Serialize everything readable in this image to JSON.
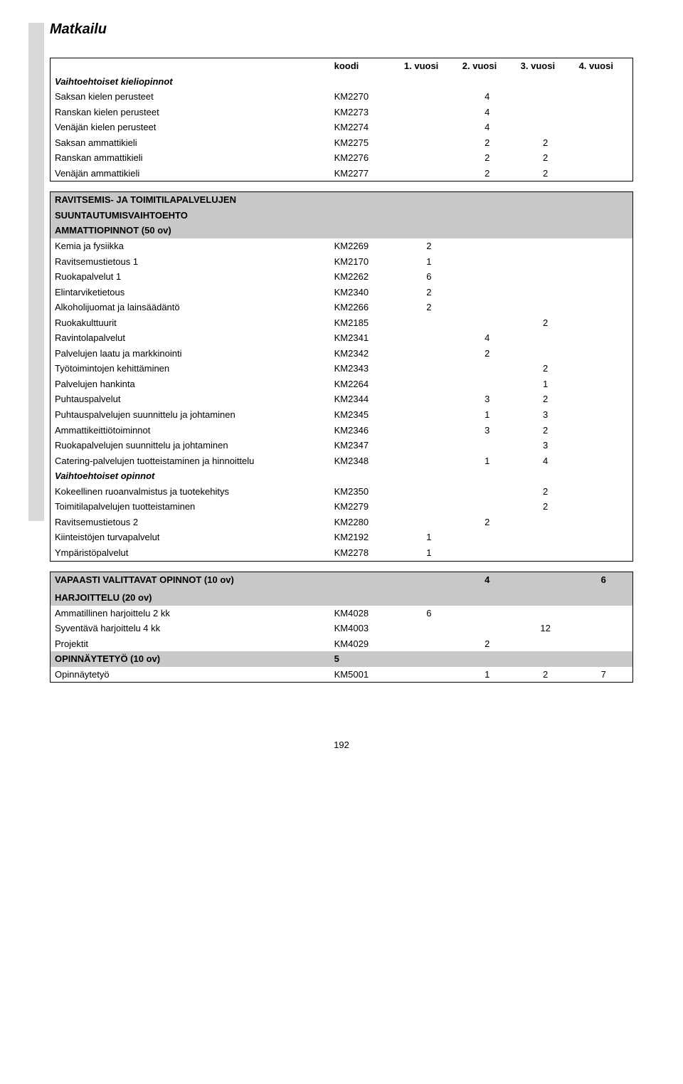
{
  "page_title": "Matkailu",
  "page_number": "192",
  "columns": {
    "koodi": "koodi",
    "v1": "1. vuosi",
    "v2": "2. vuosi",
    "v3": "3. vuosi",
    "v4": "4. vuosi"
  },
  "table1": {
    "header_italic": "Vaihtoehtoiset kieliopinnot",
    "rows": [
      {
        "name": "Saksan kielen perusteet",
        "code": "KM2270",
        "v1": "",
        "v2": "4",
        "v3": "",
        "v4": ""
      },
      {
        "name": "Ranskan kielen perusteet",
        "code": "KM2273",
        "v1": "",
        "v2": "4",
        "v3": "",
        "v4": ""
      },
      {
        "name": "Venäjän kielen perusteet",
        "code": "KM2274",
        "v1": "",
        "v2": "4",
        "v3": "",
        "v4": ""
      },
      {
        "name": "Saksan ammattikieli",
        "code": "KM2275",
        "v1": "",
        "v2": "2",
        "v3": "2",
        "v4": ""
      },
      {
        "name": "Ranskan ammattikieli",
        "code": "KM2276",
        "v1": "",
        "v2": "2",
        "v3": "2",
        "v4": ""
      },
      {
        "name": "Venäjän ammattikieli",
        "code": "KM2277",
        "v1": "",
        "v2": "2",
        "v3": "2",
        "v4": ""
      }
    ]
  },
  "table2": {
    "section_lines": [
      "RAVITSEMIS- JA TOIMITILAPALVELUJEN",
      "SUUNTAUTUMISVAIHTOEHTO",
      "AMMATTIOPINNOT (50 ov)"
    ],
    "rows": [
      {
        "name": "Kemia ja fysiikka",
        "code": "KM2269",
        "v1": "2",
        "v2": "",
        "v3": "",
        "v4": ""
      },
      {
        "name": "Ravitsemustietous 1",
        "code": "KM2170",
        "v1": "1",
        "v2": "",
        "v3": "",
        "v4": ""
      },
      {
        "name": "Ruokapalvelut 1",
        "code": "KM2262",
        "v1": "6",
        "v2": "",
        "v3": "",
        "v4": ""
      },
      {
        "name": "Elintarviketietous",
        "code": "KM2340",
        "v1": "2",
        "v2": "",
        "v3": "",
        "v4": ""
      },
      {
        "name": "Alkoholijuomat ja lainsäädäntö",
        "code": "KM2266",
        "v1": "2",
        "v2": "",
        "v3": "",
        "v4": ""
      },
      {
        "name": "Ruokakulttuurit",
        "code": "KM2185",
        "v1": "",
        "v2": "",
        "v3": "2",
        "v4": ""
      },
      {
        "name": "Ravintolapalvelut",
        "code": "KM2341",
        "v1": "",
        "v2": "4",
        "v3": "",
        "v4": ""
      },
      {
        "name": "Palvelujen laatu ja markkinointi",
        "code": "KM2342",
        "v1": "",
        "v2": "2",
        "v3": "",
        "v4": ""
      },
      {
        "name": "Työtoimintojen kehittäminen",
        "code": "KM2343",
        "v1": "",
        "v2": "",
        "v3": "2",
        "v4": ""
      },
      {
        "name": "Palvelujen hankinta",
        "code": "KM2264",
        "v1": "",
        "v2": "",
        "v3": "1",
        "v4": ""
      },
      {
        "name": "Puhtauspalvelut",
        "code": "KM2344",
        "v1": "",
        "v2": "3",
        "v3": "2",
        "v4": ""
      },
      {
        "name": "Puhtauspalvelujen suunnittelu ja johtaminen",
        "code": "KM2345",
        "v1": "",
        "v2": "1",
        "v3": "3",
        "v4": ""
      },
      {
        "name": "Ammattikeittiötoiminnot",
        "code": "KM2346",
        "v1": "",
        "v2": "3",
        "v3": "2",
        "v4": ""
      },
      {
        "name": "Ruokapalvelujen suunnittelu ja johtaminen",
        "code": "KM2347",
        "v1": "",
        "v2": "",
        "v3": "3",
        "v4": ""
      },
      {
        "name": "Catering-palvelujen tuotteistaminen ja hinnoittelu",
        "code": "KM2348",
        "v1": "",
        "v2": "1",
        "v3": "4",
        "v4": ""
      }
    ],
    "sub_italic": "Vaihtoehtoiset opinnot",
    "rows2": [
      {
        "name": "Kokeellinen ruoanvalmistus ja tuotekehitys",
        "code": "KM2350",
        "v1": "",
        "v2": "",
        "v3": "2",
        "v4": ""
      },
      {
        "name": "Toimitilapalvelujen tuotteistaminen",
        "code": "KM2279",
        "v1": "",
        "v2": "",
        "v3": "2",
        "v4": ""
      },
      {
        "name": "Ravitsemustietous 2",
        "code": "KM2280",
        "v1": "",
        "v2": "2",
        "v3": "",
        "v4": ""
      },
      {
        "name": "Kiinteistöjen turvapalvelut",
        "code": "KM2192",
        "v1": "1",
        "v2": "",
        "v3": "",
        "v4": ""
      },
      {
        "name": "Ympäristöpalvelut",
        "code": "KM2278",
        "v1": "1",
        "v2": "",
        "v3": "",
        "v4": ""
      }
    ]
  },
  "table3": {
    "vapaasti": {
      "name": "VAPAASTI VALITTAVAT OPINNOT (10 ov)",
      "v2": "4",
      "v4": "6"
    },
    "harjoittelu_header": "HARJOITTELU (20 ov)",
    "harjoittelu_rows": [
      {
        "name": "Ammatillinen harjoittelu 2 kk",
        "code": "KM4028",
        "v1": "6",
        "v2": "",
        "v3": "",
        "v4": ""
      },
      {
        "name": "Syventävä harjoittelu 4 kk",
        "code": "KM4003",
        "v1": "",
        "v2": "",
        "v3": "12",
        "v4": ""
      },
      {
        "name": "Projektit",
        "code": "KM4029",
        "v1": "",
        "v2": "2",
        "v3": "",
        "v4": ""
      }
    ],
    "opinnaytetyo_header": {
      "name": "OPINNÄYTETYÖ (10 ov)",
      "code": "5"
    },
    "opinnaytetyo_row": {
      "name": "Opinnäytetyö",
      "code": "KM5001",
      "v1": "",
      "v2": "1",
      "v3": "2",
      "v4": "7"
    }
  },
  "style": {
    "section_bg": "#c8c8c8",
    "text_color": "#000000",
    "background": "#ffffff",
    "font_family": "Arial",
    "font_size_body": 13,
    "font_size_title": 20
  }
}
